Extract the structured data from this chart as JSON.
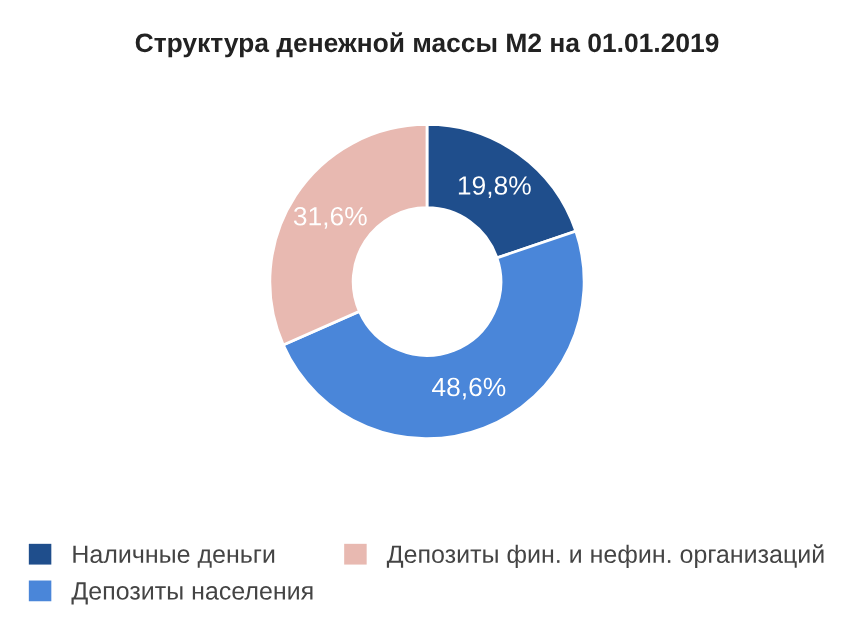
{
  "chart_data": {
    "type": "donut",
    "title": "Структура денежной массы М2 на 01.01.2019",
    "categories": [
      "Наличные деньги",
      "Депозиты населения",
      "Депозиты фин. и нефин. организаций"
    ],
    "values": [
      19.8,
      48.6,
      31.6
    ],
    "value_labels": [
      "19,8%",
      "48,6%",
      "31,6%"
    ],
    "colors": [
      "#1f4e8c",
      "#4a86d9",
      "#e8b9b1"
    ],
    "legend": "bottom"
  }
}
